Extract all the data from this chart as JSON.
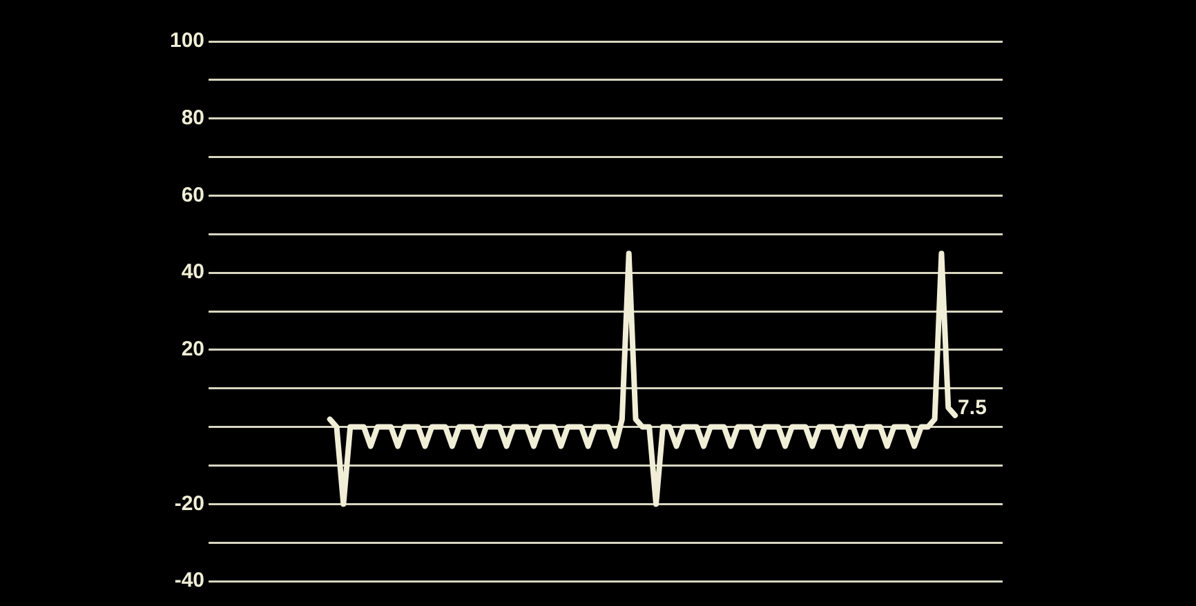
{
  "chart_data": {
    "type": "line",
    "categories": [
      null,
      null,
      null,
      null,
      null,
      null,
      null,
      null,
      null,
      null,
      null,
      null,
      null,
      null,
      null,
      null,
      null,
      null,
      null,
      null,
      null,
      null,
      null,
      null,
      null,
      null,
      null,
      null,
      null,
      null,
      null,
      null,
      null,
      null,
      null,
      null,
      null,
      null,
      null,
      null,
      null,
      null,
      null,
      null,
      null,
      null,
      null,
      null,
      null,
      null,
      null,
      null,
      null,
      null,
      null,
      null,
      null,
      null,
      null,
      null,
      null,
      null,
      null,
      null,
      null,
      null,
      null,
      null,
      null,
      null,
      null,
      null,
      null,
      null,
      null,
      null,
      null,
      null,
      null,
      null,
      null,
      null,
      null,
      null,
      null,
      null,
      null,
      null,
      null,
      null,
      null,
      null,
      null,
      null,
      null,
      null,
      null,
      null,
      null,
      null,
      null,
      null,
      null,
      null,
      null,
      null,
      null,
      null,
      null,
      null,
      null,
      null,
      null,
      null,
      null
    ],
    "series": [
      {
        "color": "#f0eed6",
        "values": [
          null,
          null,
          null,
          null,
          null,
          null,
          null,
          null,
          null,
          null,
          null,
          null,
          null,
          null,
          null,
          2,
          0,
          -20,
          0,
          0,
          0,
          -5,
          0,
          0,
          0,
          -5,
          0,
          0,
          0,
          -5,
          0,
          0,
          0,
          -5,
          0,
          0,
          0,
          -5,
          0,
          0,
          0,
          -5,
          0,
          0,
          0,
          -5,
          0,
          0,
          0,
          -5,
          0,
          0,
          0,
          -5,
          0,
          0,
          0,
          -5,
          2,
          45,
          2,
          0,
          0,
          -20,
          0,
          0,
          -5,
          0,
          0,
          0,
          -5,
          0,
          0,
          0,
          -5,
          0,
          0,
          0,
          -5,
          0,
          0,
          0,
          -5,
          0,
          0,
          0,
          -5,
          0,
          0,
          0,
          -5,
          0,
          0,
          -5,
          0,
          0,
          0,
          -5,
          0,
          0,
          0,
          -5,
          0,
          0,
          2,
          45,
          5,
          3,
          null,
          null,
          null,
          null,
          null,
          null,
          null
        ]
      }
    ],
    "ylim": [
      -40,
      100
    ],
    "yticks": [
      -40,
      {
        "value": -30,
        "label": null
      },
      -20,
      {
        "value": -10,
        "label": null
      },
      {
        "value": 0,
        "label": null
      },
      {
        "value": 10,
        "label": null
      },
      20,
      {
        "value": 30,
        "label": null
      },
      40,
      {
        "value": 50,
        "label": null
      },
      60,
      {
        "value": 70,
        "label": null
      },
      80,
      {
        "value": 90,
        "label": null
      },
      100
    ],
    "grid": "y",
    "tick_labels": "y",
    "annotations": [
      "7.5"
    ]
  }
}
